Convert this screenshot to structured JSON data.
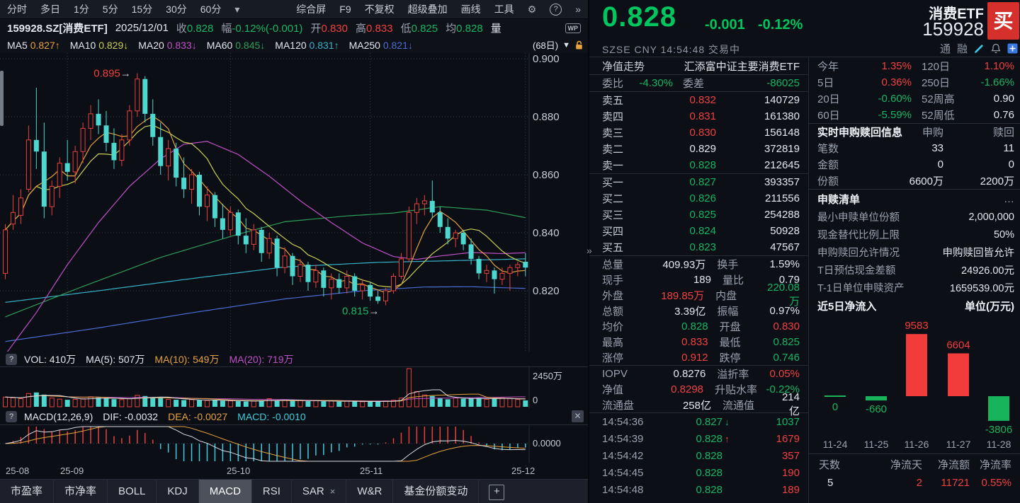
{
  "colors": {
    "bg": "#0a0d13",
    "panel": "#0c0f16",
    "toolbar_bg": "#171b24",
    "border": "#262b36",
    "grid": "#333a49",
    "red": "#f04141",
    "green": "#16b565",
    "big_green": "#00c45e",
    "candle_cyan": "#4dd7cf",
    "candle_red": "#e8413c",
    "orange": "#e6a23e",
    "yellow": "#ccd052",
    "magenta": "#c050c8",
    "ma_green": "#2f9e5a",
    "teal": "#36b2c9",
    "blue": "#4a6cd4",
    "macd_cyan": "#3ecbe0",
    "buy_btn": "#d6302d",
    "tab_sel": "#4d515c",
    "text": "#e4e7ee",
    "muted": "#9aa1af"
  },
  "toolbar": {
    "left": [
      "分时",
      "多日",
      "1分",
      "5分",
      "15分",
      "30分",
      "60分"
    ],
    "caret": "▾",
    "right": [
      "综合屏",
      "F9",
      "不复权",
      "超级叠加",
      "画线",
      "工具"
    ],
    "icons": {
      "gear": "⚙",
      "help": "?",
      "more": "»"
    }
  },
  "info_row": {
    "symbol": "159928.SZ[消费ETF]",
    "date": "2025/12/01",
    "pairs": [
      [
        "收",
        "0.828",
        "g"
      ],
      [
        "幅",
        "-0.12%(-0.001)",
        "g"
      ],
      [
        "开",
        "0.830",
        "r"
      ],
      [
        "高",
        "0.833",
        "r"
      ],
      [
        "低",
        "0.825",
        "g"
      ],
      [
        "均",
        "0.828",
        "g"
      ]
    ],
    "vol_label": "量",
    "wp": "WP"
  },
  "ma_row": {
    "items": [
      [
        "MA5",
        "0.827",
        "↑",
        "or"
      ],
      [
        "MA10",
        "0.829",
        "↓",
        "ye"
      ],
      [
        "MA20",
        "0.833",
        "↓",
        "mg"
      ],
      [
        "MA60",
        "0.845",
        "↓",
        "mgr"
      ],
      [
        "MA120",
        "0.831",
        "↑",
        "teal"
      ],
      [
        "MA250",
        "0.821",
        "↓",
        "bl"
      ]
    ],
    "period": "(68日)",
    "caret": "▼"
  },
  "vol_row": {
    "help": "?",
    "parts": [
      [
        "VOL: 410万",
        "w"
      ],
      [
        "MA(5): 507万",
        "w"
      ],
      [
        "MA(10): 549万",
        "or"
      ],
      [
        "MA(20): 719万",
        "mg"
      ]
    ]
  },
  "macd_row": {
    "help": "?",
    "parts": [
      [
        "MACD(12,26,9)",
        "w"
      ],
      [
        "DIF: -0.0032",
        "w"
      ],
      [
        "DEA: -0.0027",
        "or"
      ],
      [
        "MACD: -0.0010",
        "cyt"
      ]
    ],
    "close": "✕"
  },
  "xaxis": {
    "labels": [
      [
        "25-08",
        8
      ],
      [
        "25-09",
        85
      ],
      [
        "25-10",
        320
      ],
      [
        "25-11",
        508
      ],
      [
        "25-12",
        722
      ]
    ]
  },
  "tabs": {
    "items": [
      "市盈率",
      "市净率",
      "BOLL",
      "KDJ",
      "MACD",
      "RSI",
      "SAR",
      "W&R",
      "基金份额变动"
    ],
    "selected": "MACD",
    "sar_close": "×",
    "add": "+"
  },
  "chart_data": {
    "type": "candlestick",
    "title": "159928.SZ 消费ETF 日K (68日)",
    "price_gridlines": [
      0.9,
      0.88,
      0.86,
      0.84,
      0.82
    ],
    "vol_axis_max_label": "2450万",
    "vol_axis_min_label": "0",
    "vol_axis_max": 2450,
    "macd_zero_label": "0.0000",
    "months_days": [
      0,
      8,
      29,
      47,
      67
    ],
    "annotations": [
      {
        "text": "0.895",
        "day": 17,
        "price": 0.895,
        "color": "#f0413c"
      },
      {
        "text": "0.815",
        "day": 49,
        "price": 0.815,
        "color": "#16b565"
      }
    ],
    "candles": [
      [
        0.826,
        0.843,
        0.824,
        0.841
      ],
      [
        0.843,
        0.853,
        0.841,
        0.847
      ],
      [
        0.846,
        0.855,
        0.843,
        0.852
      ],
      [
        0.855,
        0.877,
        0.854,
        0.872
      ],
      [
        0.872,
        0.89,
        0.862,
        0.868
      ],
      [
        0.868,
        0.878,
        0.845,
        0.849
      ],
      [
        0.849,
        0.858,
        0.846,
        0.856
      ],
      [
        0.856,
        0.866,
        0.852,
        0.864
      ],
      [
        0.864,
        0.872,
        0.858,
        0.861
      ],
      [
        0.861,
        0.87,
        0.857,
        0.868
      ],
      [
        0.868,
        0.878,
        0.864,
        0.876
      ],
      [
        0.876,
        0.884,
        0.872,
        0.881
      ],
      [
        0.881,
        0.886,
        0.874,
        0.877
      ],
      [
        0.877,
        0.882,
        0.868,
        0.871
      ],
      [
        0.871,
        0.876,
        0.862,
        0.865
      ],
      [
        0.865,
        0.874,
        0.863,
        0.872
      ],
      [
        0.872,
        0.884,
        0.87,
        0.882
      ],
      [
        0.882,
        0.895,
        0.88,
        0.893
      ],
      [
        0.893,
        0.894,
        0.878,
        0.881
      ],
      [
        0.881,
        0.886,
        0.87,
        0.873
      ],
      [
        0.873,
        0.878,
        0.86,
        0.863
      ],
      [
        0.863,
        0.872,
        0.858,
        0.869
      ],
      [
        0.869,
        0.871,
        0.856,
        0.859
      ],
      [
        0.859,
        0.866,
        0.852,
        0.855
      ],
      [
        0.855,
        0.862,
        0.85,
        0.86
      ],
      [
        0.86,
        0.861,
        0.846,
        0.849
      ],
      [
        0.849,
        0.856,
        0.844,
        0.853
      ],
      [
        0.853,
        0.854,
        0.842,
        0.845
      ],
      [
        0.845,
        0.85,
        0.838,
        0.841
      ],
      [
        0.841,
        0.849,
        0.839,
        0.847
      ],
      [
        0.847,
        0.848,
        0.836,
        0.839
      ],
      [
        0.839,
        0.845,
        0.833,
        0.836
      ],
      [
        0.836,
        0.843,
        0.834,
        0.841
      ],
      [
        0.841,
        0.842,
        0.83,
        0.833
      ],
      [
        0.833,
        0.84,
        0.831,
        0.838
      ],
      [
        0.838,
        0.839,
        0.825,
        0.828
      ],
      [
        0.828,
        0.835,
        0.826,
        0.832
      ],
      [
        0.832,
        0.833,
        0.822,
        0.825
      ],
      [
        0.825,
        0.831,
        0.823,
        0.829
      ],
      [
        0.829,
        0.83,
        0.82,
        0.823
      ],
      [
        0.823,
        0.829,
        0.821,
        0.827
      ],
      [
        0.827,
        0.828,
        0.818,
        0.821
      ],
      [
        0.821,
        0.826,
        0.817,
        0.824
      ],
      [
        0.824,
        0.826,
        0.819,
        0.821
      ],
      [
        0.821,
        0.827,
        0.819,
        0.825
      ],
      [
        0.825,
        0.826,
        0.818,
        0.82
      ],
      [
        0.82,
        0.824,
        0.817,
        0.822
      ],
      [
        0.822,
        0.823,
        0.8165,
        0.818
      ],
      [
        0.818,
        0.82,
        0.8155,
        0.8165
      ],
      [
        0.8165,
        0.821,
        0.815,
        0.82
      ],
      [
        0.82,
        0.826,
        0.819,
        0.825
      ],
      [
        0.825,
        0.833,
        0.824,
        0.831
      ],
      [
        0.831,
        0.849,
        0.83,
        0.847
      ],
      [
        0.847,
        0.852,
        0.843,
        0.85
      ],
      [
        0.85,
        0.853,
        0.846,
        0.851
      ],
      [
        0.851,
        0.858,
        0.845,
        0.847
      ],
      [
        0.847,
        0.849,
        0.84,
        0.842
      ],
      [
        0.842,
        0.845,
        0.836,
        0.838
      ],
      [
        0.838,
        0.841,
        0.835,
        0.84
      ],
      [
        0.84,
        0.841,
        0.834,
        0.836
      ],
      [
        0.836,
        0.838,
        0.829,
        0.831
      ],
      [
        0.831,
        0.832,
        0.824,
        0.826
      ],
      [
        0.826,
        0.829,
        0.823,
        0.827
      ],
      [
        0.827,
        0.828,
        0.819,
        0.824
      ],
      [
        0.824,
        0.828,
        0.822,
        0.826
      ],
      [
        0.826,
        0.829,
        0.82,
        0.828
      ],
      [
        0.828,
        0.83,
        0.825,
        0.829
      ],
      [
        0.83,
        0.833,
        0.825,
        0.828
      ]
    ],
    "volumes": [
      620,
      580,
      520,
      850,
      920,
      780,
      560,
      490,
      450,
      480,
      520,
      640,
      580,
      530,
      490,
      460,
      520,
      740,
      690,
      610,
      580,
      470,
      450,
      430,
      460,
      420,
      410,
      430,
      390,
      380,
      360,
      340,
      370,
      420,
      520,
      390,
      440,
      380,
      410,
      360,
      390,
      350,
      370,
      330,
      360,
      340,
      320,
      350,
      330,
      380,
      420,
      560,
      2450,
      980,
      760,
      690,
      570,
      480,
      560,
      520,
      540,
      560,
      480,
      520,
      560,
      530,
      470,
      410
    ],
    "ma_overlays": {
      "ma20": [
        [
          0,
          0.798
        ],
        [
          4,
          0.8125
        ],
        [
          8,
          0.829
        ],
        [
          12,
          0.8435
        ],
        [
          16,
          0.856
        ],
        [
          20,
          0.8655
        ],
        [
          23,
          0.8705
        ],
        [
          26,
          0.8715
        ],
        [
          30,
          0.867
        ],
        [
          34,
          0.8595
        ],
        [
          38,
          0.851
        ],
        [
          42,
          0.8435
        ],
        [
          46,
          0.8365
        ],
        [
          50,
          0.8318
        ],
        [
          53,
          0.8308
        ],
        [
          56,
          0.832
        ],
        [
          60,
          0.8332
        ],
        [
          64,
          0.8328
        ],
        [
          67,
          0.8331
        ]
      ],
      "ma60": [
        [
          0,
          0.811
        ],
        [
          10,
          0.8215
        ],
        [
          20,
          0.8315
        ],
        [
          30,
          0.8395
        ],
        [
          36,
          0.8438
        ],
        [
          44,
          0.8458
        ],
        [
          50,
          0.8468
        ],
        [
          56,
          0.849
        ],
        [
          62,
          0.8478
        ],
        [
          67,
          0.8452
        ]
      ],
      "ma120": [
        [
          0,
          0.816
        ],
        [
          12,
          0.82
        ],
        [
          24,
          0.8242
        ],
        [
          36,
          0.8282
        ],
        [
          48,
          0.8298
        ],
        [
          58,
          0.8304
        ],
        [
          67,
          0.831
        ]
      ],
      "ma250": [
        [
          0,
          0.8025
        ],
        [
          12,
          0.8072
        ],
        [
          24,
          0.8124
        ],
        [
          36,
          0.8172
        ],
        [
          46,
          0.82
        ],
        [
          54,
          0.8213
        ],
        [
          60,
          0.8214
        ],
        [
          67,
          0.8208
        ]
      ]
    }
  },
  "quote": {
    "price": "0.828",
    "change": "-0.001",
    "change_pct": "-0.12%",
    "name": "消费ETF",
    "code": "159928",
    "buy_button": "买",
    "exchange": "SZSE",
    "currency": "CNY",
    "time": "14:54:48",
    "status": "交易中",
    "badges": [
      "通",
      "融"
    ]
  },
  "book": {
    "nav_label": "净值走势",
    "nav_value": "汇添富中证主要消费ETF",
    "weibi_label": "委比",
    "weibi": "-4.30%",
    "weicha_label": "委差",
    "weicha": "-86025",
    "sells": [
      [
        "卖五",
        "0.832",
        "r",
        "140729"
      ],
      [
        "卖四",
        "0.831",
        "r",
        "161380"
      ],
      [
        "卖三",
        "0.830",
        "r",
        "156148"
      ],
      [
        "卖二",
        "0.829",
        "w",
        "372819"
      ],
      [
        "卖一",
        "0.828",
        "g",
        "212645"
      ]
    ],
    "buys": [
      [
        "买一",
        "0.827",
        "g",
        "393357"
      ],
      [
        "买二",
        "0.826",
        "g",
        "211556"
      ],
      [
        "买三",
        "0.825",
        "g",
        "254288"
      ],
      [
        "买四",
        "0.824",
        "g",
        "50928"
      ],
      [
        "买五",
        "0.823",
        "g",
        "47567"
      ]
    ]
  },
  "stats": [
    [
      "总量",
      "409.93万",
      "w",
      "换手",
      "1.59%",
      "w"
    ],
    [
      "现手",
      "189",
      "w",
      "量比",
      "0.79",
      "w"
    ],
    [
      "外盘",
      "189.85万",
      "r",
      "内盘",
      "220.08万",
      "g"
    ],
    [
      "总额",
      "3.39亿",
      "w",
      "振幅",
      "0.97%",
      "w"
    ],
    [
      "均价",
      "0.828",
      "g",
      "开盘",
      "0.830",
      "r"
    ],
    [
      "最高",
      "0.833",
      "r",
      "最低",
      "0.825",
      "g"
    ],
    [
      "涨停",
      "0.912",
      "r",
      "跌停",
      "0.746",
      "g"
    ],
    [
      "IOPV",
      "0.8276",
      "w",
      "溢折率",
      "0.05%",
      "r"
    ],
    [
      "净值",
      "0.8298",
      "r",
      "升贴水率",
      "-0.22%",
      "g"
    ],
    [
      "流通盘",
      "258亿",
      "w",
      "流通值",
      "214亿",
      "w"
    ]
  ],
  "stats_sep_after": 6,
  "ticks": [
    [
      "14:54:36",
      "0.827",
      "g",
      "↓",
      "g",
      "1037",
      "g"
    ],
    [
      "14:54:39",
      "0.828",
      "g",
      "↑",
      "r",
      "1679",
      "r"
    ],
    [
      "14:54:42",
      "0.828",
      "g",
      "",
      "",
      "357",
      "r"
    ],
    [
      "14:54:45",
      "0.828",
      "g",
      "",
      "",
      "190",
      "r"
    ],
    [
      "14:54:48",
      "0.828",
      "g",
      "",
      "",
      "189",
      "r"
    ]
  ],
  "perf": [
    [
      "今年",
      "1.35%",
      "r",
      "120日",
      "1.10%",
      "r"
    ],
    [
      "5日",
      "0.36%",
      "r",
      "250日",
      "-1.66%",
      "g"
    ],
    [
      "20日",
      "-0.60%",
      "g",
      "52周高",
      "0.90",
      "w"
    ],
    [
      "60日",
      "-5.59%",
      "g",
      "52周低",
      "0.76",
      "w"
    ]
  ],
  "subscription": {
    "title": "实时申购赎回信息",
    "col1": "申购",
    "col2": "赎回",
    "rows": [
      [
        "笔数",
        "33",
        "11"
      ],
      [
        "金额",
        "0",
        "0"
      ],
      [
        "份额",
        "6600万",
        "2200万"
      ]
    ]
  },
  "basket": {
    "title": "申赎清单",
    "more": "…",
    "rows": [
      [
        "最小申赎单位份额",
        "2,000,000"
      ],
      [
        "现金替代比例上限",
        "50%"
      ],
      [
        "申购赎回允许情况",
        "申购赎回皆允许"
      ],
      [
        "T日预估现金差额",
        "24926.00元"
      ],
      [
        "T-1日单位申赎资产",
        "1659539.00元"
      ]
    ]
  },
  "flow": {
    "title": "近5日净流入",
    "unit": "单位(万元)",
    "type": "bar",
    "dates": [
      "11-24",
      "11-25",
      "11-26",
      "11-27",
      "11-28"
    ],
    "values": [
      0,
      -660,
      9583,
      6604,
      -3806
    ],
    "footer": [
      [
        "天数",
        "5",
        "w"
      ],
      [
        "净流天",
        "2",
        "r"
      ],
      [
        "净流额",
        "11721",
        "r"
      ],
      [
        "净流率",
        "0.55%",
        "r"
      ]
    ]
  }
}
